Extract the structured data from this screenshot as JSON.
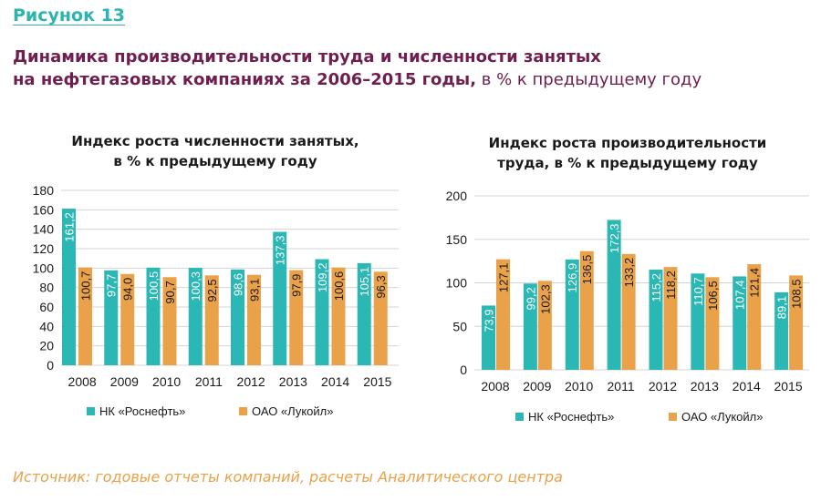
{
  "figure": {
    "label": "Рисунок 13",
    "title_line1": "Динамика производительности труда и численности занятых",
    "title_line2_bold": "на нефтегазовых компаниях за 2006–2015 годы,",
    "title_line2_normal": " в % к предыдущему году",
    "source": "Источник: годовые отчеты компаний, расчеты Аналитического центра"
  },
  "colors": {
    "teal": "#2bb8b4",
    "orange": "#e9a24a",
    "grid": "#d4d4d4",
    "teal_label": "#ffffff",
    "orange_label": "#1a1a1a"
  },
  "chart_data": [
    {
      "type": "bar",
      "title_line1": "Индекс роста численности занятых,",
      "title_line2": "в % к предыдущему году",
      "categories": [
        "2008",
        "2009",
        "2010",
        "2011",
        "2012",
        "2013",
        "2014",
        "2015"
      ],
      "series": [
        {
          "name": "НК «Роснефть»",
          "values": [
            161.2,
            97.7,
            100.5,
            100.3,
            98.6,
            137.3,
            109.2,
            105.1
          ],
          "labels": [
            "161,2",
            "97,7",
            "100,5",
            "100,3",
            "98,6",
            "137,3",
            "109,2",
            "105,1"
          ]
        },
        {
          "name": "ОАО «Лукойл»",
          "values": [
            100.7,
            94.0,
            90.7,
            92.5,
            93.1,
            97.9,
            100.6,
            96.3
          ],
          "labels": [
            "100,7",
            "94,0",
            "90,7",
            "92,5",
            "93,1",
            "97,9",
            "100,6",
            "96,3"
          ]
        }
      ],
      "ylim": [
        0,
        180
      ],
      "yticks": [
        0,
        20,
        40,
        60,
        80,
        100,
        120,
        140,
        160,
        180
      ],
      "grid": true,
      "legend": "bottom"
    },
    {
      "type": "bar",
      "title_line1": "Индекс роста производительности",
      "title_line2": "труда, в % к предыдущему году",
      "categories": [
        "2008",
        "2009",
        "2010",
        "2011",
        "2012",
        "2013",
        "2014",
        "2015"
      ],
      "series": [
        {
          "name": "НК «Роснефть»",
          "values": [
            73.9,
            99.2,
            126.9,
            172.3,
            115.2,
            110.7,
            107.4,
            89.1
          ],
          "labels": [
            "73,9",
            "99,2",
            "126,9",
            "172,3",
            "115,2",
            "110,7",
            "107,4",
            "89,1"
          ]
        },
        {
          "name": "ОАО «Лукойл»",
          "values": [
            127.1,
            102.3,
            136.5,
            133.2,
            118.2,
            106.5,
            121.4,
            108.5
          ],
          "labels": [
            "127,1",
            "102,3",
            "136,5",
            "133,2",
            "118,2",
            "106,5",
            "121,4",
            "108,5"
          ]
        }
      ],
      "ylim": [
        0,
        200
      ],
      "yticks": [
        0,
        50,
        100,
        150,
        200
      ],
      "grid": true,
      "legend": "bottom"
    }
  ]
}
